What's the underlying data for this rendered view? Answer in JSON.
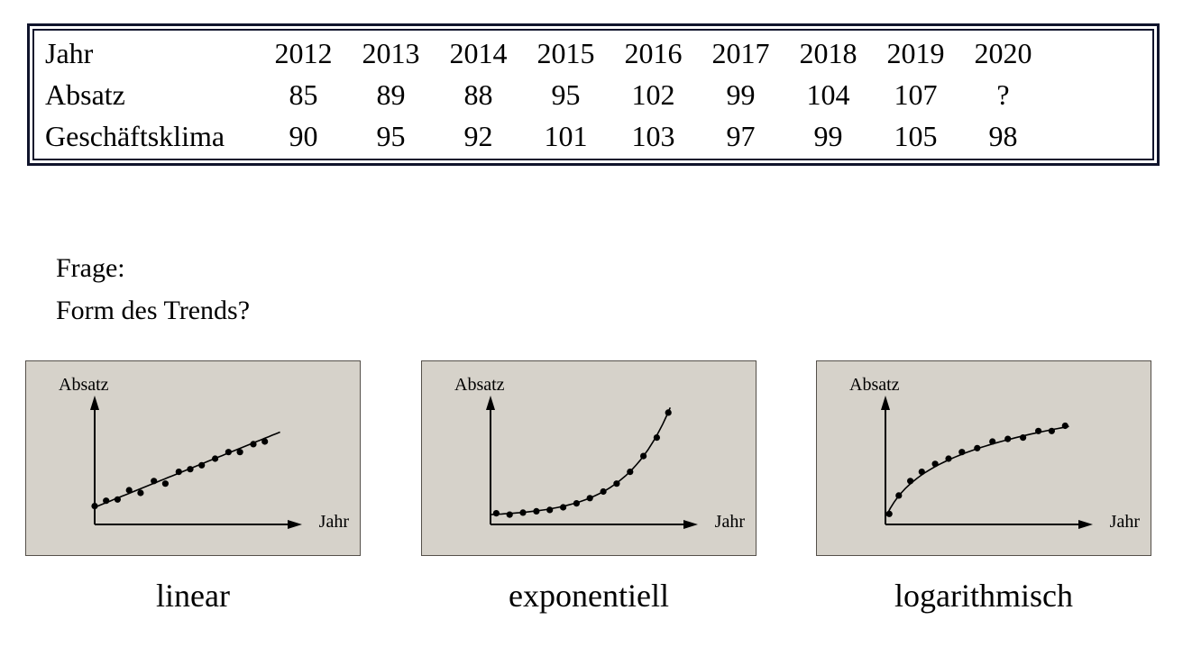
{
  "colors": {
    "page_bg": "#ffffff",
    "table_border": "#10142c",
    "panel_bg": "#d6d2ca",
    "panel_border": "#55504a",
    "ink": "#000000"
  },
  "table": {
    "rows": [
      {
        "label": "Jahr",
        "values": [
          "2012",
          "2013",
          "2014",
          "2015",
          "2016",
          "2017",
          "2018",
          "2019",
          "2020"
        ]
      },
      {
        "label": "Absatz",
        "values": [
          "85",
          "89",
          "88",
          "95",
          "102",
          "99",
          "104",
          "107",
          "?"
        ]
      },
      {
        "label": "Geschäftsklima",
        "values": [
          "90",
          "95",
          "92",
          "101",
          "103",
          "97",
          "99",
          "105",
          "98"
        ]
      }
    ]
  },
  "question": {
    "line1": "Frage:",
    "line2": "Form des Trends?"
  },
  "charts": [
    {
      "label": "linear",
      "ylabel": "Absatz",
      "xlabel": "Jahr",
      "curve": {
        "kind": "linear",
        "y0": 0.13,
        "y1": 0.72,
        "t0": 0,
        "t1": 0.97
      },
      "points": [
        [
          0.0,
          0.14
        ],
        [
          0.06,
          0.18
        ],
        [
          0.12,
          0.19
        ],
        [
          0.18,
          0.26
        ],
        [
          0.24,
          0.24
        ],
        [
          0.31,
          0.33
        ],
        [
          0.37,
          0.31
        ],
        [
          0.44,
          0.4
        ],
        [
          0.5,
          0.42
        ],
        [
          0.56,
          0.45
        ],
        [
          0.63,
          0.5
        ],
        [
          0.7,
          0.55
        ],
        [
          0.76,
          0.55
        ],
        [
          0.83,
          0.61
        ],
        [
          0.89,
          0.63
        ]
      ]
    },
    {
      "label": "exponentiell",
      "ylabel": "Absatz",
      "xlabel": "Jahr",
      "curve": {
        "kind": "exponential",
        "y0": 0.075,
        "a": 0.016,
        "k": 4.2,
        "t0": 0,
        "t1": 0.94
      },
      "points": [
        [
          0.03,
          0.085
        ],
        [
          0.1,
          0.075
        ],
        [
          0.17,
          0.09
        ],
        [
          0.24,
          0.1
        ],
        [
          0.31,
          0.11
        ],
        [
          0.38,
          0.13
        ],
        [
          0.45,
          0.16
        ],
        [
          0.52,
          0.2
        ],
        [
          0.59,
          0.25
        ],
        [
          0.66,
          0.31
        ],
        [
          0.73,
          0.4
        ],
        [
          0.8,
          0.52
        ],
        [
          0.87,
          0.66
        ],
        [
          0.93,
          0.85
        ]
      ]
    },
    {
      "label": "logarithmisch",
      "ylabel": "Absatz",
      "xlabel": "Jahr",
      "curve": {
        "kind": "logarithmic",
        "a": 0.05,
        "b": 0.275,
        "c": 12,
        "t0": 0.005,
        "t1": 0.96
      },
      "points": [
        [
          0.02,
          0.08
        ],
        [
          0.07,
          0.22
        ],
        [
          0.13,
          0.33
        ],
        [
          0.19,
          0.4
        ],
        [
          0.26,
          0.46
        ],
        [
          0.33,
          0.5
        ],
        [
          0.4,
          0.55
        ],
        [
          0.48,
          0.58
        ],
        [
          0.56,
          0.63
        ],
        [
          0.64,
          0.65
        ],
        [
          0.72,
          0.66
        ],
        [
          0.8,
          0.71
        ],
        [
          0.87,
          0.71
        ],
        [
          0.94,
          0.75
        ]
      ]
    }
  ],
  "chart_data": [
    {
      "type": "table",
      "categories": [
        "2012",
        "2013",
        "2014",
        "2015",
        "2016",
        "2017",
        "2018",
        "2019",
        "2020"
      ],
      "series": [
        {
          "name": "Absatz",
          "values": [
            85,
            89,
            88,
            95,
            102,
            99,
            104,
            107,
            "?"
          ]
        },
        {
          "name": "Geschäftsklima",
          "values": [
            90,
            95,
            92,
            101,
            103,
            97,
            99,
            105,
            98
          ]
        }
      ]
    },
    {
      "type": "scatter",
      "title": "linear",
      "xlabel": "Jahr",
      "ylabel": "Absatz",
      "trend_shape": "linear",
      "axes_numeric": false
    },
    {
      "type": "scatter",
      "title": "exponentiell",
      "xlabel": "Jahr",
      "ylabel": "Absatz",
      "trend_shape": "exponential",
      "axes_numeric": false
    },
    {
      "type": "scatter",
      "title": "logarithmisch",
      "xlabel": "Jahr",
      "ylabel": "Absatz",
      "trend_shape": "logarithmic",
      "axes_numeric": false
    }
  ]
}
